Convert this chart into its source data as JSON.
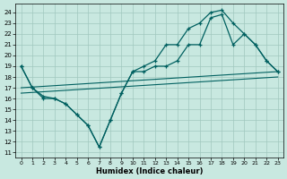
{
  "xlabel": "Humidex (Indice chaleur)",
  "bg_color": "#c8e8e0",
  "grid_color": "#a0c8be",
  "line_color": "#006060",
  "xlim": [
    -0.5,
    23.5
  ],
  "ylim": [
    10.5,
    24.8
  ],
  "yticks": [
    11,
    12,
    13,
    14,
    15,
    16,
    17,
    18,
    19,
    20,
    21,
    22,
    23,
    24
  ],
  "xticks": [
    0,
    1,
    2,
    3,
    4,
    5,
    6,
    7,
    8,
    9,
    10,
    11,
    12,
    13,
    14,
    15,
    16,
    17,
    18,
    19,
    20,
    21,
    22,
    23
  ],
  "line1_x": [
    0,
    1,
    2,
    3,
    4,
    5,
    6,
    7,
    8,
    9,
    10,
    11,
    12,
    13,
    14,
    15,
    16,
    17,
    18,
    19,
    20,
    21,
    22,
    23
  ],
  "line1_y": [
    19.0,
    17.0,
    16.2,
    16.0,
    15.5,
    14.5,
    13.5,
    11.5,
    14.0,
    16.5,
    18.5,
    19.0,
    19.5,
    21.0,
    21.0,
    22.5,
    23.0,
    24.0,
    24.2,
    23.0,
    22.0,
    21.0,
    19.5,
    18.5
  ],
  "line2_x": [
    0,
    1,
    2,
    3,
    4,
    5,
    6,
    7,
    8,
    9,
    10,
    11,
    12,
    13,
    14,
    15,
    16,
    17,
    18,
    19,
    20,
    21,
    22,
    23
  ],
  "line2_y": [
    19.0,
    17.0,
    16.0,
    16.0,
    15.5,
    14.5,
    13.5,
    11.5,
    14.0,
    16.5,
    18.5,
    18.5,
    19.0,
    19.0,
    19.5,
    21.0,
    21.0,
    23.5,
    23.8,
    21.0,
    22.0,
    21.0,
    19.5,
    18.5
  ],
  "line3_x": [
    0,
    23
  ],
  "line3_y": [
    17.0,
    18.5
  ],
  "line4_x": [
    0,
    23
  ],
  "line4_y": [
    16.5,
    18.0
  ]
}
